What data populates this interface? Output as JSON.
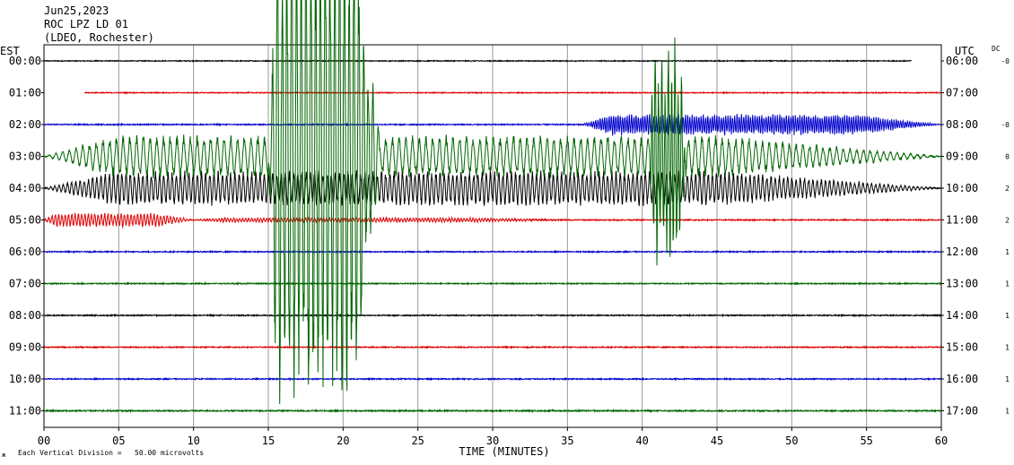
{
  "header": {
    "date": "Jun25,2023",
    "station": "ROC LPZ LD 01",
    "network": "(LDEO, Rochester)"
  },
  "chart_data": {
    "type": "line",
    "title": "",
    "xlabel": "TIME (MINUTES)",
    "x_ticks": [
      "00",
      "05",
      "10",
      "15",
      "20",
      "25",
      "30",
      "35",
      "40",
      "45",
      "50",
      "55",
      "60"
    ],
    "xlim": [
      0,
      60
    ],
    "left_axis_title": "EST",
    "right_axis_title": "UTC",
    "dc_header": "DC",
    "grid": true,
    "footer_note": "Each Vertical Division =   50.00 microvolts",
    "footer_mark": "ж",
    "rows": [
      {
        "est": "00:00",
        "utc": "06:00",
        "dc": "-0",
        "color": "#000000",
        "start_min": 0.0,
        "end_min": 58.0,
        "noise_uv": 0.4
      },
      {
        "est": "01:00",
        "utc": "07:00",
        "dc": "",
        "color": "#dd0000",
        "start_min": 2.7,
        "end_min": 60.0,
        "noise_uv": 0.4
      },
      {
        "est": "02:00",
        "utc": "08:00",
        "dc": "-0",
        "color": "#0000cc",
        "start_min": 0.0,
        "end_min": 60.0,
        "noise_uv": 0.5
      },
      {
        "est": "03:00",
        "utc": "09:00",
        "dc": "0",
        "color": "#006600",
        "start_min": 0.0,
        "end_min": 60.0,
        "noise_uv": 0.5
      },
      {
        "est": "04:00",
        "utc": "10:00",
        "dc": "2",
        "color": "#000000",
        "start_min": 0.0,
        "end_min": 60.0,
        "noise_uv": 0.5
      },
      {
        "est": "05:00",
        "utc": "11:00",
        "dc": "2",
        "color": "#dd0000",
        "start_min": 0.0,
        "end_min": 60.0,
        "noise_uv": 0.5
      },
      {
        "est": "06:00",
        "utc": "12:00",
        "dc": "1",
        "color": "#0000cc",
        "start_min": 0.0,
        "end_min": 60.0,
        "noise_uv": 0.5
      },
      {
        "est": "07:00",
        "utc": "13:00",
        "dc": "1",
        "color": "#006600",
        "start_min": 0.0,
        "end_min": 60.0,
        "noise_uv": 0.5
      },
      {
        "est": "08:00",
        "utc": "14:00",
        "dc": "1",
        "color": "#000000",
        "start_min": 0.0,
        "end_min": 60.0,
        "noise_uv": 0.5
      },
      {
        "est": "09:00",
        "utc": "15:00",
        "dc": "1",
        "color": "#dd0000",
        "start_min": 0.0,
        "end_min": 60.0,
        "noise_uv": 0.5
      },
      {
        "est": "10:00",
        "utc": "16:00",
        "dc": "1",
        "color": "#0000cc",
        "start_min": 0.0,
        "end_min": 60.0,
        "noise_uv": 0.5
      },
      {
        "est": "11:00",
        "utc": "17:00",
        "dc": "1",
        "color": "#006600",
        "start_min": 0.0,
        "end_min": 60.0,
        "noise_uv": 0.6
      }
    ],
    "events": [
      {
        "row": 3,
        "start_min": 0.0,
        "end_min": 60.0,
        "amp_uv": 60,
        "period_min": 0.45
      },
      {
        "row": 3,
        "start_min": 15.0,
        "end_min": 22.5,
        "amp_uv": 700,
        "period_min": 0.32
      },
      {
        "row": 3,
        "start_min": 40.5,
        "end_min": 43.0,
        "amp_uv": 300,
        "period_min": 0.22
      },
      {
        "row": 4,
        "start_min": 0.0,
        "end_min": 60.0,
        "amp_uv": 50,
        "period_min": 0.28
      },
      {
        "row": 2,
        "start_min": 36.0,
        "end_min": 60.0,
        "amp_uv": 30,
        "period_min": 0.15
      },
      {
        "row": 5,
        "start_min": 0.0,
        "end_min": 10.0,
        "amp_uv": 20,
        "period_min": 0.22
      },
      {
        "row": 5,
        "start_min": 10.0,
        "end_min": 35.0,
        "amp_uv": 6,
        "period_min": 0.2
      }
    ]
  }
}
